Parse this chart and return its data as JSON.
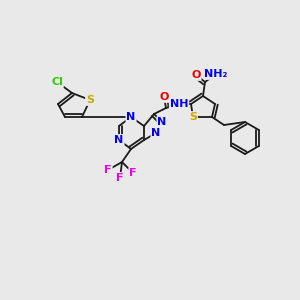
{
  "background_color": "#e9e9e9",
  "bond_color": "#1a1a1a",
  "atoms": {
    "Cl": {
      "color": "#33cc00"
    },
    "S": {
      "color": "#ccaa00"
    },
    "N": {
      "color": "#0000ee"
    },
    "O": {
      "color": "#ee0000"
    },
    "F": {
      "color": "#ee00ee"
    },
    "H": {
      "color": "#008888"
    },
    "C": {
      "color": "#1a1a1a"
    }
  },
  "figsize": [
    3.0,
    3.0
  ],
  "dpi": 100
}
